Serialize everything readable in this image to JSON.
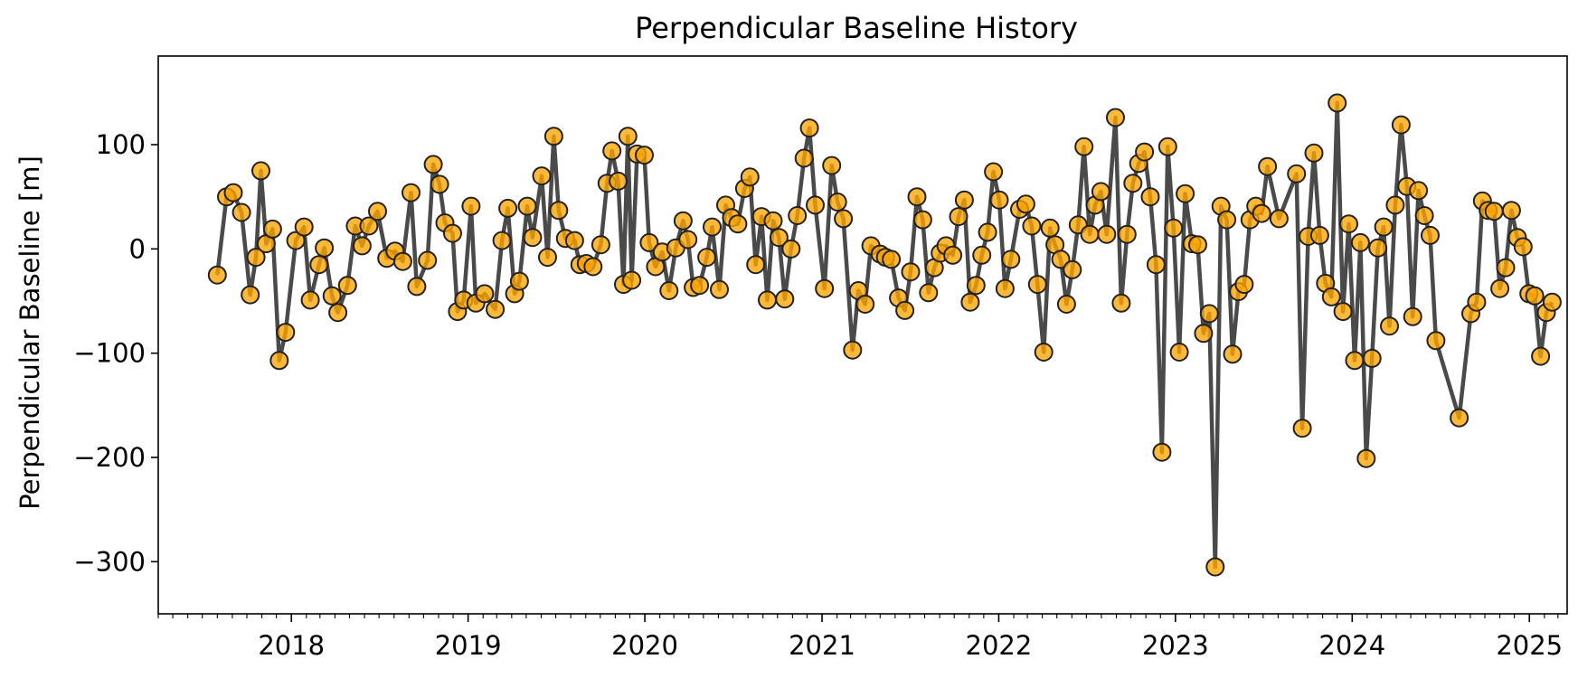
{
  "chart_data": {
    "type": "line",
    "title": "Perpendicular Baseline History",
    "xlabel": "",
    "ylabel": "Perpendicular Baseline [m]",
    "xlim": [
      "2017-04-01",
      "2025-03-20"
    ],
    "ylim": [
      -350,
      185
    ],
    "x_tick_labels": [
      "2018",
      "2019",
      "2020",
      "2021",
      "2022",
      "2023",
      "2024",
      "2025"
    ],
    "y_tick_labels": [
      "100",
      "0",
      "−100",
      "−200",
      "−300"
    ],
    "y_tick_values": [
      100,
      0,
      -100,
      -200,
      -300
    ],
    "grid": false,
    "legend": false,
    "colors": {
      "line": "#404040",
      "marker_fill": "#FFA500",
      "marker_edge": "#222222"
    },
    "series": [
      {
        "points": [
          [
            "2017-08-01",
            -25
          ],
          [
            "2017-08-20",
            50
          ],
          [
            "2017-09-03",
            54
          ],
          [
            "2017-09-20",
            35
          ],
          [
            "2017-10-08",
            -44
          ],
          [
            "2017-10-20",
            -8
          ],
          [
            "2017-10-30",
            75
          ],
          [
            "2017-11-10",
            5
          ],
          [
            "2017-11-23",
            19
          ],
          [
            "2017-12-07",
            -107
          ],
          [
            "2017-12-20",
            -80
          ],
          [
            "2018-01-10",
            8
          ],
          [
            "2018-01-27",
            21
          ],
          [
            "2018-02-09",
            -49
          ],
          [
            "2018-02-27",
            -15
          ],
          [
            "2018-03-10",
            1
          ],
          [
            "2018-03-26",
            -45
          ],
          [
            "2018-04-07",
            -61
          ],
          [
            "2018-04-27",
            -35
          ],
          [
            "2018-05-13",
            22
          ],
          [
            "2018-05-27",
            3
          ],
          [
            "2018-06-10",
            22
          ],
          [
            "2018-06-28",
            36
          ],
          [
            "2018-07-17",
            -9
          ],
          [
            "2018-08-03",
            -2
          ],
          [
            "2018-08-19",
            -12
          ],
          [
            "2018-09-05",
            54
          ],
          [
            "2018-09-17",
            -36
          ],
          [
            "2018-10-09",
            -11
          ],
          [
            "2018-10-21",
            81
          ],
          [
            "2018-11-03",
            62
          ],
          [
            "2018-11-14",
            25
          ],
          [
            "2018-11-30",
            15
          ],
          [
            "2018-12-10",
            -60
          ],
          [
            "2018-12-23",
            -49
          ],
          [
            "2019-01-07",
            41
          ],
          [
            "2019-01-17",
            -52
          ],
          [
            "2019-02-04",
            -43
          ],
          [
            "2019-02-26",
            -58
          ],
          [
            "2019-03-12",
            8
          ],
          [
            "2019-03-24",
            39
          ],
          [
            "2019-04-07",
            -43
          ],
          [
            "2019-04-17",
            -31
          ],
          [
            "2019-05-03",
            41
          ],
          [
            "2019-05-14",
            11
          ],
          [
            "2019-06-02",
            70
          ],
          [
            "2019-06-14",
            -8
          ],
          [
            "2019-06-27",
            108
          ],
          [
            "2019-07-07",
            37
          ],
          [
            "2019-07-21",
            10
          ],
          [
            "2019-08-09",
            8
          ],
          [
            "2019-08-20",
            -15
          ],
          [
            "2019-09-02",
            -14
          ],
          [
            "2019-09-16",
            -17
          ],
          [
            "2019-10-02",
            4
          ],
          [
            "2019-10-15",
            63
          ],
          [
            "2019-10-25",
            94
          ],
          [
            "2019-11-07",
            65
          ],
          [
            "2019-11-18",
            -34
          ],
          [
            "2019-11-27",
            108
          ],
          [
            "2019-12-05",
            -30
          ],
          [
            "2019-12-16",
            91
          ],
          [
            "2019-12-31",
            90
          ],
          [
            "2020-01-10",
            6
          ],
          [
            "2020-01-23",
            -17
          ],
          [
            "2020-02-06",
            -3
          ],
          [
            "2020-02-20",
            -40
          ],
          [
            "2020-03-05",
            1
          ],
          [
            "2020-03-20",
            27
          ],
          [
            "2020-03-30",
            9
          ],
          [
            "2020-04-10",
            -37
          ],
          [
            "2020-04-23",
            -35
          ],
          [
            "2020-05-08",
            -8
          ],
          [
            "2020-05-19",
            21
          ],
          [
            "2020-06-03",
            -39
          ],
          [
            "2020-06-16",
            42
          ],
          [
            "2020-06-28",
            30
          ],
          [
            "2020-07-11",
            24
          ],
          [
            "2020-07-25",
            58
          ],
          [
            "2020-08-05",
            69
          ],
          [
            "2020-08-17",
            -15
          ],
          [
            "2020-08-29",
            31
          ],
          [
            "2020-09-10",
            -49
          ],
          [
            "2020-09-22",
            27
          ],
          [
            "2020-10-04",
            11
          ],
          [
            "2020-10-16",
            -48
          ],
          [
            "2020-10-29",
            0
          ],
          [
            "2020-11-11",
            32
          ],
          [
            "2020-11-25",
            87
          ],
          [
            "2020-12-06",
            116
          ],
          [
            "2020-12-18",
            42
          ],
          [
            "2021-01-06",
            -38
          ],
          [
            "2021-01-21",
            80
          ],
          [
            "2021-02-02",
            45
          ],
          [
            "2021-02-14",
            29
          ],
          [
            "2021-03-05",
            -97
          ],
          [
            "2021-03-17",
            -40
          ],
          [
            "2021-03-31",
            -53
          ],
          [
            "2021-04-12",
            3
          ],
          [
            "2021-05-01",
            -5
          ],
          [
            "2021-05-12",
            -8
          ],
          [
            "2021-05-24",
            -10
          ],
          [
            "2021-06-08",
            -47
          ],
          [
            "2021-06-21",
            -59
          ],
          [
            "2021-07-03",
            -22
          ],
          [
            "2021-07-16",
            50
          ],
          [
            "2021-07-28",
            28
          ],
          [
            "2021-08-09",
            -42
          ],
          [
            "2021-08-21",
            -18
          ],
          [
            "2021-09-02",
            -4
          ],
          [
            "2021-09-14",
            3
          ],
          [
            "2021-09-28",
            -6
          ],
          [
            "2021-10-10",
            31
          ],
          [
            "2021-10-22",
            47
          ],
          [
            "2021-11-03",
            -51
          ],
          [
            "2021-11-15",
            -35
          ],
          [
            "2021-11-27",
            -6
          ],
          [
            "2021-12-09",
            16
          ],
          [
            "2021-12-21",
            74
          ],
          [
            "2022-01-02",
            47
          ],
          [
            "2022-01-14",
            -38
          ],
          [
            "2022-01-26",
            -10
          ],
          [
            "2022-02-13",
            38
          ],
          [
            "2022-02-26",
            43
          ],
          [
            "2022-03-10",
            22
          ],
          [
            "2022-03-22",
            -34
          ],
          [
            "2022-04-04",
            -99
          ],
          [
            "2022-04-17",
            20
          ],
          [
            "2022-04-27",
            4
          ],
          [
            "2022-05-09",
            -10
          ],
          [
            "2022-05-21",
            -53
          ],
          [
            "2022-06-02",
            -20
          ],
          [
            "2022-06-14",
            23
          ],
          [
            "2022-06-26",
            98
          ],
          [
            "2022-07-08",
            14
          ],
          [
            "2022-07-19",
            42
          ],
          [
            "2022-07-31",
            55
          ],
          [
            "2022-08-12",
            14
          ],
          [
            "2022-08-30",
            126
          ],
          [
            "2022-09-11",
            -52
          ],
          [
            "2022-09-23",
            14
          ],
          [
            "2022-10-05",
            63
          ],
          [
            "2022-10-17",
            82
          ],
          [
            "2022-10-29",
            93
          ],
          [
            "2022-11-10",
            50
          ],
          [
            "2022-11-22",
            -15
          ],
          [
            "2022-12-04",
            -195
          ],
          [
            "2022-12-16",
            98
          ],
          [
            "2022-12-28",
            20
          ],
          [
            "2023-01-09",
            -99
          ],
          [
            "2023-01-21",
            53
          ],
          [
            "2023-02-04",
            5
          ],
          [
            "2023-02-16",
            4
          ],
          [
            "2023-02-28",
            -81
          ],
          [
            "2023-03-12",
            -62
          ],
          [
            "2023-03-24",
            -305
          ],
          [
            "2023-04-05",
            41
          ],
          [
            "2023-04-17",
            28
          ],
          [
            "2023-04-29",
            -101
          ],
          [
            "2023-05-11",
            -41
          ],
          [
            "2023-05-23",
            -34
          ],
          [
            "2023-06-04",
            28
          ],
          [
            "2023-06-16",
            41
          ],
          [
            "2023-06-28",
            34
          ],
          [
            "2023-07-10",
            79
          ],
          [
            "2023-08-03",
            29
          ],
          [
            "2023-09-08",
            72
          ],
          [
            "2023-09-20",
            -172
          ],
          [
            "2023-10-02",
            12
          ],
          [
            "2023-10-14",
            92
          ],
          [
            "2023-10-26",
            13
          ],
          [
            "2023-11-07",
            -33
          ],
          [
            "2023-11-19",
            -46
          ],
          [
            "2023-12-01",
            140
          ],
          [
            "2023-12-13",
            -60
          ],
          [
            "2023-12-25",
            24
          ],
          [
            "2024-01-06",
            -107
          ],
          [
            "2024-01-18",
            6
          ],
          [
            "2024-01-30",
            -201
          ],
          [
            "2024-02-11",
            -105
          ],
          [
            "2024-02-23",
            1
          ],
          [
            "2024-03-06",
            21
          ],
          [
            "2024-03-18",
            -74
          ],
          [
            "2024-03-30",
            42
          ],
          [
            "2024-04-11",
            119
          ],
          [
            "2024-04-23",
            60
          ],
          [
            "2024-05-05",
            -65
          ],
          [
            "2024-05-17",
            56
          ],
          [
            "2024-05-29",
            32
          ],
          [
            "2024-06-10",
            13
          ],
          [
            "2024-06-22",
            -88
          ],
          [
            "2024-08-09",
            -162
          ],
          [
            "2024-09-02",
            -62
          ],
          [
            "2024-09-14",
            -51
          ],
          [
            "2024-09-26",
            46
          ],
          [
            "2024-10-08",
            37
          ],
          [
            "2024-10-20",
            36
          ],
          [
            "2024-11-01",
            -38
          ],
          [
            "2024-11-13",
            -18
          ],
          [
            "2024-11-25",
            37
          ],
          [
            "2024-12-07",
            11
          ],
          [
            "2024-12-19",
            2
          ],
          [
            "2024-12-31",
            -43
          ],
          [
            "2025-01-12",
            -45
          ],
          [
            "2025-01-24",
            -103
          ],
          [
            "2025-02-05",
            -61
          ],
          [
            "2025-02-17",
            -51
          ]
        ]
      }
    ]
  }
}
